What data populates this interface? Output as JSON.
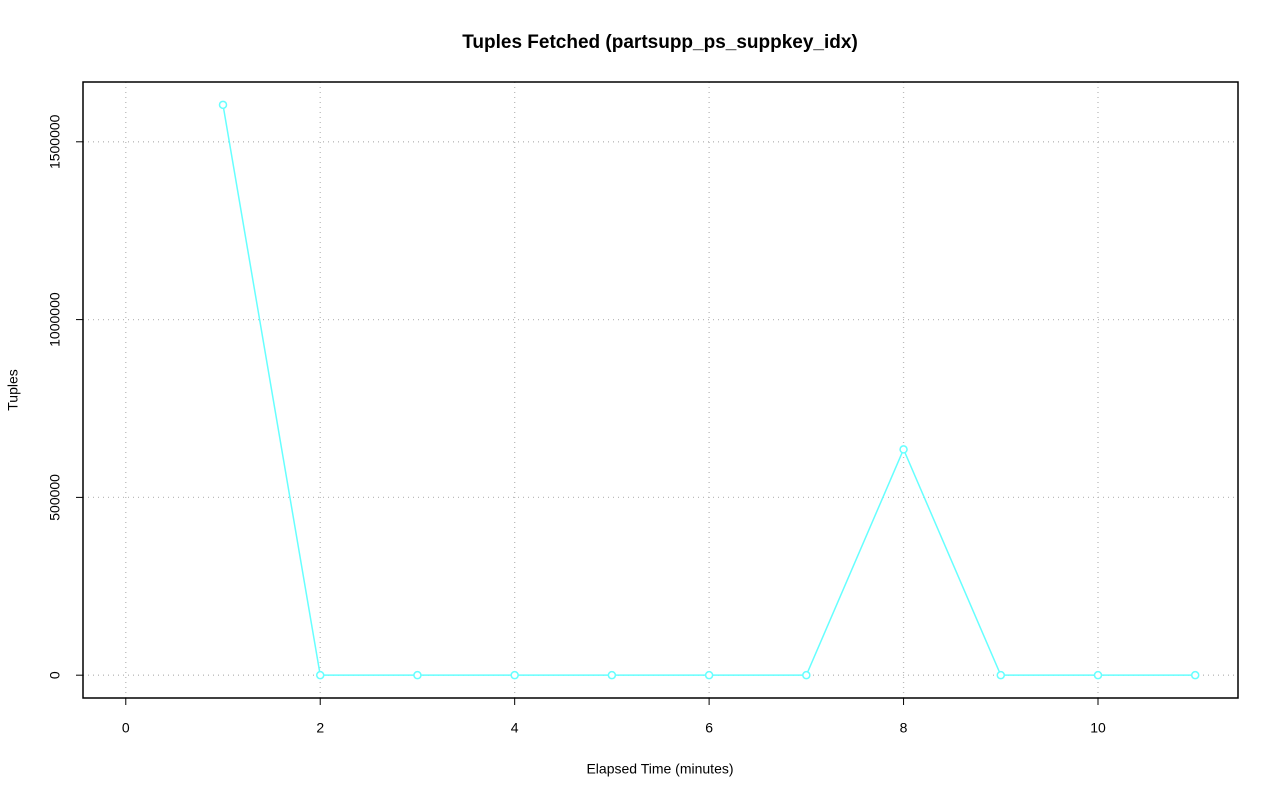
{
  "chart_data": {
    "type": "line",
    "title": "Tuples Fetched (partsupp_ps_suppkey_idx)",
    "x_label": "Elapsed Time (minutes)",
    "y_label": "Tuples",
    "x": [
      1,
      2,
      3,
      4,
      5,
      6,
      7,
      8,
      9,
      10,
      11
    ],
    "series": [
      {
        "color": "#66ffff",
        "values": [
          1604000,
          0,
          0,
          0,
          0,
          0,
          0,
          635000,
          0,
          0,
          0
        ]
      }
    ],
    "xlim": [
      -0.44,
      11.44
    ],
    "xticks": [
      0,
      2,
      4,
      6,
      8,
      10
    ],
    "ylim": [
      -64160,
      1668160
    ],
    "yticks": [
      0,
      500000,
      1000000,
      1500000
    ],
    "grid": true
  }
}
